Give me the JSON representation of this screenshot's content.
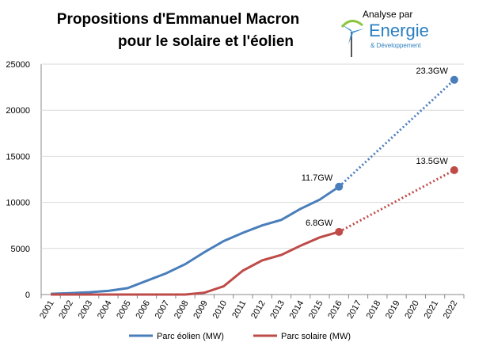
{
  "chart_data": {
    "type": "line",
    "title": [
      "Propositions d'Emmanuel Macron",
      "pour le solaire et l'éolien"
    ],
    "logo": [
      "Analyse par",
      "Energie",
      "& Développement"
    ],
    "categories": [
      "2001",
      "2002",
      "2003",
      "2004",
      "2005",
      "2006",
      "2007",
      "2008",
      "2009",
      "2010",
      "2011",
      "2012",
      "2013",
      "2014",
      "2015",
      "2016",
      "2017",
      "2018",
      "2019",
      "2020",
      "2021",
      "2022"
    ],
    "ylim": [
      0,
      25000
    ],
    "yticks": [
      0,
      5000,
      10000,
      15000,
      20000,
      25000
    ],
    "grid": true,
    "series": [
      {
        "name": "Parc éolien (MW)",
        "color": "#4a7ebb",
        "values": [
          80,
          150,
          250,
          400,
          700,
          1500,
          2300,
          3300,
          4600,
          5800,
          6700,
          7500,
          8100,
          9300,
          10300,
          11700,
          null,
          null,
          null,
          null,
          null,
          null
        ],
        "projection": [
          {
            "category": "2016",
            "value": 11700,
            "label": "11.7GW"
          },
          {
            "category": "2022",
            "value": 23300,
            "label": "23.3GW"
          }
        ]
      },
      {
        "name": "Parc solaire (MW)",
        "color": "#be4b48",
        "values": [
          0,
          0,
          0,
          0,
          0,
          0,
          0,
          0,
          200,
          900,
          2600,
          3700,
          4300,
          5300,
          6200,
          6800,
          null,
          null,
          null,
          null,
          null,
          null
        ],
        "projection": [
          {
            "category": "2016",
            "value": 6800,
            "label": "6.8GW"
          },
          {
            "category": "2022",
            "value": 13500,
            "label": "13.5GW"
          }
        ]
      }
    ]
  }
}
